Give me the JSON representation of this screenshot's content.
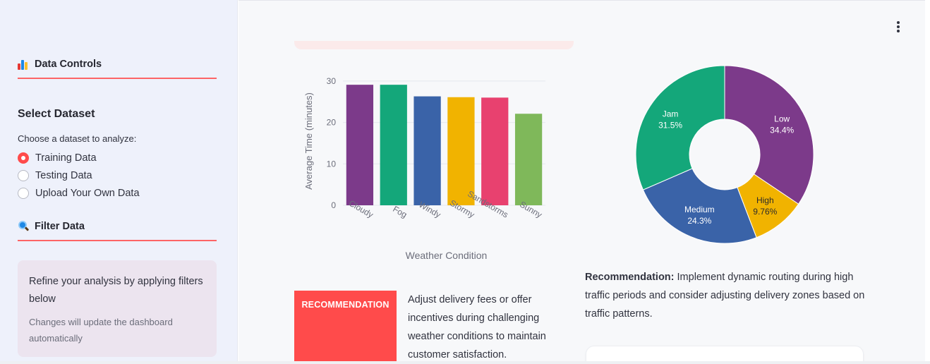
{
  "sidebar": {
    "data_controls": {
      "title": "Data Controls",
      "icon": "bar-chart-icon"
    },
    "select_dataset": {
      "title": "Select Dataset",
      "caption": "Choose a dataset to analyze:",
      "options": [
        {
          "label": "Training Data",
          "checked": true
        },
        {
          "label": "Testing Data",
          "checked": false
        },
        {
          "label": "Upload Your Own Data",
          "checked": false
        }
      ]
    },
    "filter_data": {
      "title": "Filter Data",
      "icon": "magnifier-icon"
    },
    "info": {
      "main": "Refine your analysis by applying filters below",
      "sub": "Changes will update the dashboard automatically"
    }
  },
  "main": {
    "menu_icon": "vertical-dots-icon",
    "recommendation_badge": "RECOMMENDATION",
    "recommendation_text": "Adjust delivery fees or offer incentives during challenging weather conditions to maintain customer satisfaction.",
    "recommendation2": {
      "label": "Recommendation:",
      "text": " Implement dynamic routing during high traffic periods and consider adjusting delivery zones based on traffic patterns."
    }
  },
  "colors": {
    "accent": "#ff4b4b",
    "sidebar_bg": "#eef1fb",
    "info_bg": "#ece4ef"
  },
  "chart_data": [
    {
      "type": "bar",
      "categories": [
        "Cloudy",
        "Fog",
        "Windy",
        "Stormy",
        "Sandstorms",
        "Sunny"
      ],
      "values": [
        29.1,
        29.1,
        26.3,
        26.1,
        26.0,
        22.1
      ],
      "colors": [
        "#7c3a8a",
        "#14a77a",
        "#3a63a8",
        "#f1b300",
        "#e8416f",
        "#7fb85a"
      ],
      "xlabel": "Weather Condition",
      "ylabel": "Average Time (minutes)",
      "ylim": [
        0,
        31
      ],
      "yticks": [
        0,
        10,
        20,
        30
      ],
      "grid": true
    },
    {
      "type": "pie",
      "donut": true,
      "slices": [
        {
          "label": "Low",
          "value": 34.4,
          "pct": "34.4%",
          "color": "#7c3a8a"
        },
        {
          "label": "High",
          "value": 9.76,
          "pct": "9.76%",
          "color": "#f1b300"
        },
        {
          "label": "Medium",
          "value": 24.3,
          "pct": "24.3%",
          "color": "#3a63a8"
        },
        {
          "label": "Jam",
          "value": 31.5,
          "pct": "31.5%",
          "color": "#14a77a"
        }
      ]
    }
  ]
}
